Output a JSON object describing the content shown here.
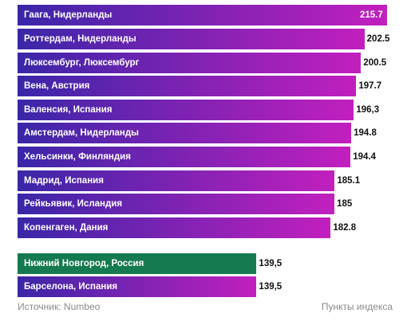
{
  "chart_data": {
    "type": "bar",
    "orientation": "horizontal",
    "categories": [
      "Гаага, Нидерланды",
      "Роттердам, Нидерланды",
      "Люксембург, Люксембург",
      "Вена, Австрия",
      "Валенсия, Испания",
      "Амстердам, Нидерланды",
      "Хельсинки, Финляндия",
      "Мадрид, Испания",
      "Рейкьявик, Исландия",
      "Копенгаген, Дания",
      "Нижний Новгород, Россия",
      "Барселона, Испания"
    ],
    "values": [
      215.7,
      202.5,
      200.5,
      197.7,
      196.3,
      194.8,
      194.4,
      185.1,
      185,
      182.8,
      139.5,
      139.5
    ],
    "value_labels": [
      "215.7",
      "202.5",
      "200.5",
      "197.7",
      "196,3",
      "194.8",
      "194.4",
      "185.1",
      "185",
      "182.8",
      "139,5",
      "139,5"
    ],
    "highlight": "Нижний Новгород, Россия",
    "source": "Источник: Numbeo",
    "units": "Пункты индекса",
    "legend": "none",
    "grid": false
  },
  "colors": {
    "bar_start": "#3a26a8",
    "bar_end": "#c21fbe",
    "highlight": "#157a4f",
    "value_text": "#111111",
    "footer_text": "#8a8a8a"
  }
}
